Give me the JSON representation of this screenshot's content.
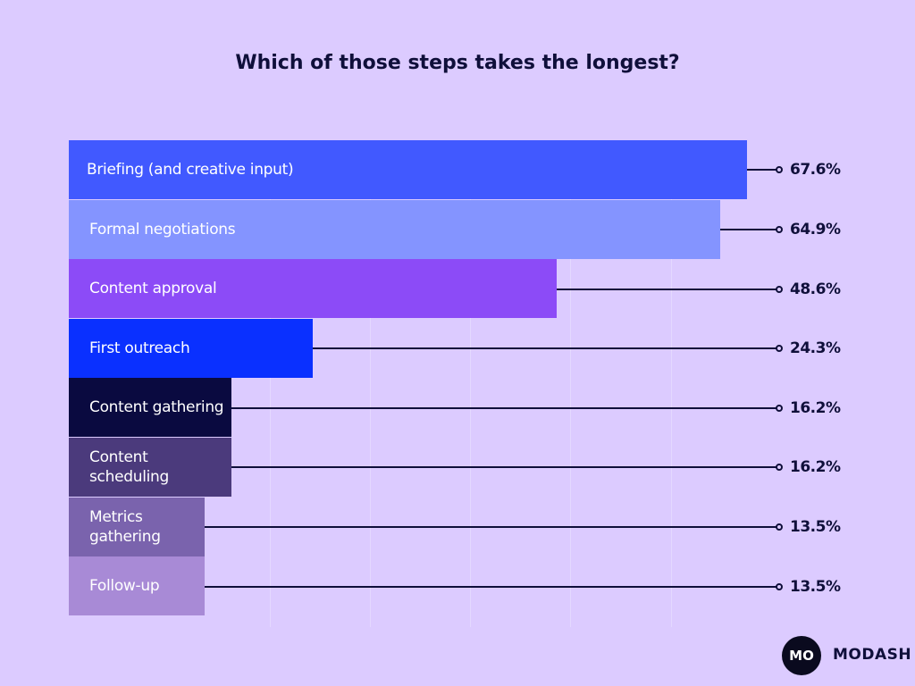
{
  "chart_data": {
    "type": "bar",
    "orientation": "horizontal",
    "title": "Which of those steps takes the longest?",
    "categories": [
      "Briefing (and creative input)",
      "Formal negotiations",
      "Content approval",
      "First outreach",
      "Content gathering",
      "Content scheduling",
      "Metrics gathering",
      "Follow-up"
    ],
    "values": [
      67.6,
      64.9,
      48.6,
      24.3,
      16.2,
      16.2,
      13.5,
      13.5
    ],
    "value_labels": [
      "67.6%",
      "64.9%",
      "48.6%",
      "24.3%",
      "16.2%",
      "16.2%",
      "13.5%",
      "13.5%"
    ],
    "colors": [
      "#4159ff",
      "#8494ff",
      "#8c4bf7",
      "#0a30ff",
      "#0a0a40",
      "#4b3a7c",
      "#7a63ad",
      "#a88ad6"
    ],
    "xlim": [
      0,
      70
    ],
    "xticks": [
      20,
      30,
      40,
      50,
      60
    ],
    "grid": true
  },
  "brand": {
    "logo_text": "MO",
    "name": "MODASH"
  }
}
